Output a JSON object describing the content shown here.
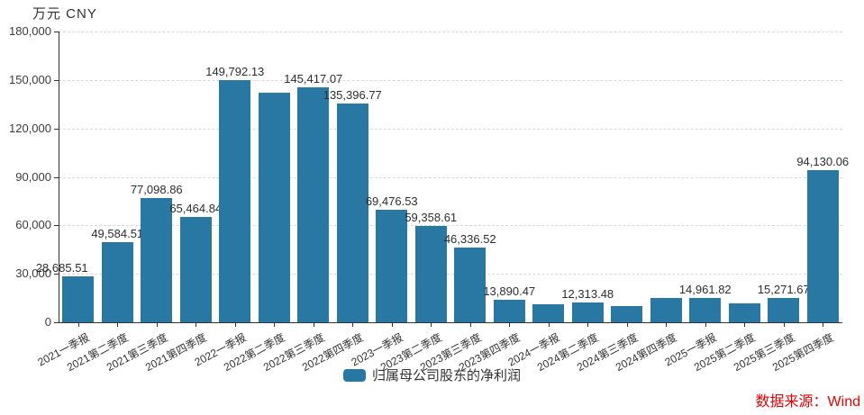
{
  "colors": {
    "bar": "#2878a3",
    "grid": "#d9d9d9",
    "axis": "#333333",
    "text": "#333333",
    "source_red": "#e60000",
    "background": "#ffffff"
  },
  "chart_data": {
    "type": "bar",
    "title": "",
    "unit_label": "万元  CNY",
    "xlabel": "",
    "ylabel": "万元 CNY",
    "ylim": [
      0,
      180000
    ],
    "y_tick_step": 30000,
    "y_tick_labels": [
      "0",
      "30,000",
      "60,000",
      "90,000",
      "120,000",
      "150,000",
      "180,000"
    ],
    "grid": "horizontal-dashed",
    "legend_position": "bottom-center",
    "legend": [
      {
        "name": "归属母公司股东的净利润",
        "color": "#2878a3"
      }
    ],
    "source_note": "数据来源：Wind",
    "categories": [
      "2021一季报",
      "2021第二季度",
      "2021第三季度",
      "2021第四季度",
      "2022一季报",
      "2022第二季度",
      "2022第三季度",
      "2022第四季度",
      "2023一季报",
      "2023第二季度",
      "2023第三季度",
      "2023第四季度",
      "2024一季报",
      "2024第二季度",
      "2024第三季度",
      "2024第四季度",
      "2025一季报",
      "2025第二季度",
      "2025第三季度",
      "2025第四季度"
    ],
    "series": [
      {
        "name": "归属母公司股东的净利润",
        "values": [
          28685.51,
          49584.51,
          77098.86,
          65464.84,
          149792.13,
          142000,
          145417.07,
          135396.77,
          69476.53,
          59358.61,
          46336.52,
          13890.47,
          11300,
          12313.48,
          10100,
          15100,
          14961.82,
          11750,
          15271.67,
          94130.06
        ],
        "labels": [
          "28,685.51",
          "49,584.51",
          "77,098.86",
          "65,464.84",
          "149,792.13",
          "",
          "145,417.07",
          "135,396.77",
          "69,476.53",
          "59,358.61",
          "46,336.52",
          "13,890.47",
          "",
          "12,313.48",
          "",
          "",
          "14,961.82",
          "",
          "15,271.67",
          "94,130.06"
        ],
        "unlabeled_values_estimated": [
          142000,
          11300,
          10100,
          15100,
          11750
        ]
      }
    ]
  }
}
